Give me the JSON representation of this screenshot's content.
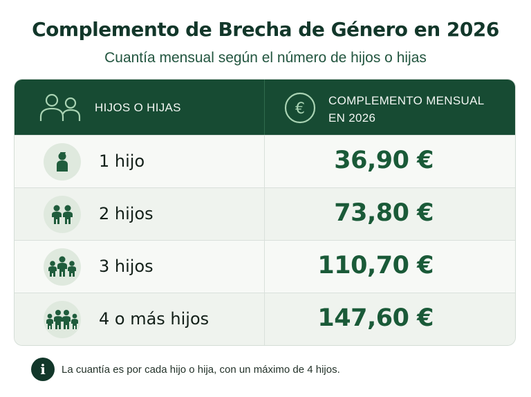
{
  "header": {
    "title": "Complemento de Brecha de Género en 2026",
    "subtitle": "Cuantía mensual según el número de hijos o hijas"
  },
  "table": {
    "col_children": "HIJOS O HIJAS",
    "col_amount_line1": "COMPLEMENTO MENSUAL",
    "col_amount_line2": "EN 2026",
    "header_bg": "#174b33",
    "amount_color": "#1a5a38",
    "rows": [
      {
        "children": "1 hijo",
        "amount": "36,90 €",
        "icon": "single-child-icon"
      },
      {
        "children": "2 hijos",
        "amount": "73,80 €",
        "icon": "two-children-icon"
      },
      {
        "children": "3 hijos",
        "amount": "110,70 €",
        "icon": "three-children-icon"
      },
      {
        "children": "4 o más hijos",
        "amount": "147,60 €",
        "icon": "four-children-icon"
      }
    ]
  },
  "footer": {
    "note": "La cuantía es por cada hijo o hija, con un máximo de 4 hijos."
  }
}
